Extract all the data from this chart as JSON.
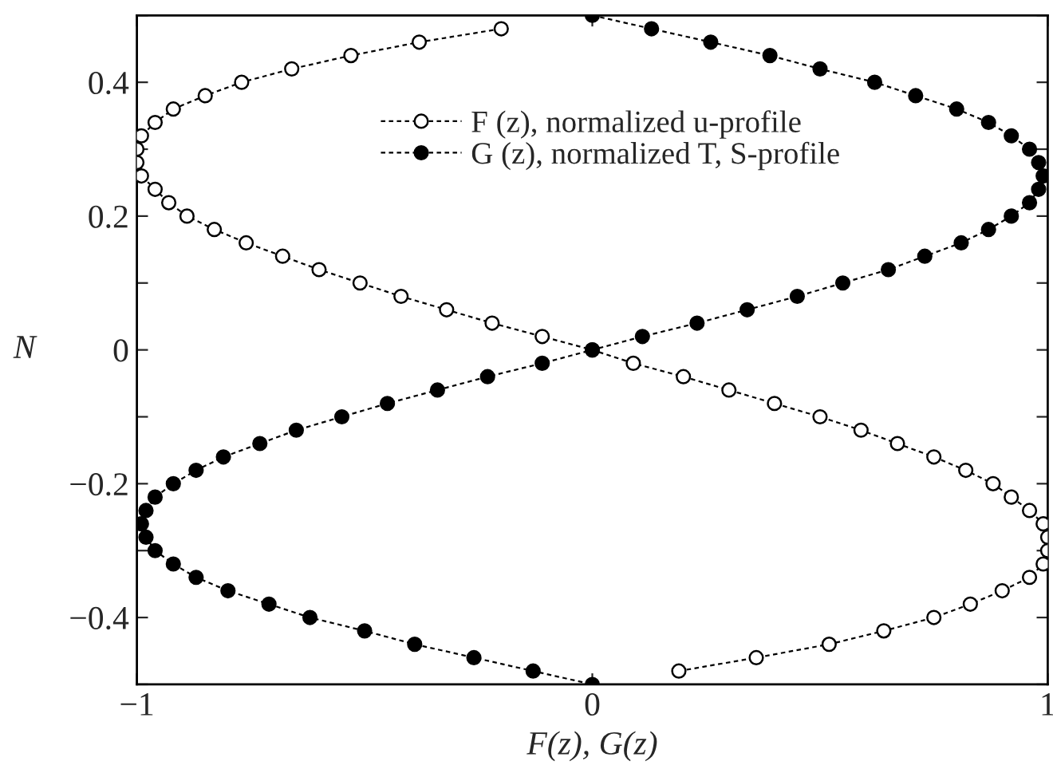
{
  "chart_data": {
    "type": "line",
    "xlabel": "F(z), G(z)",
    "ylabel": "N",
    "xlim": [
      -1,
      1
    ],
    "xticks": [
      -1,
      0,
      1
    ],
    "ylim": [
      -0.5,
      0.5
    ],
    "yticks": [
      {
        "value": -0.5,
        "label": null
      },
      -0.4,
      {
        "value": -0.3,
        "label": null
      },
      -0.2,
      {
        "value": -0.1,
        "label": null
      },
      0,
      {
        "value": 0.1,
        "label": null
      },
      0.2,
      {
        "value": 0.3,
        "label": null
      },
      0.4,
      {
        "value": 0.5,
        "label": null
      }
    ],
    "grid": false,
    "legend": "top",
    "marker": "circle",
    "line_style": "dashed",
    "series": [
      {
        "name": "F (z), normalized u-profile",
        "color": "#ffffff",
        "x": [
          -0.2,
          -0.38,
          -0.53,
          -0.66,
          -0.77,
          -0.85,
          -0.92,
          -0.96,
          -0.99,
          -1.0,
          -1.0,
          -0.99,
          -0.96,
          -0.93,
          -0.89,
          -0.83,
          -0.76,
          -0.68,
          -0.6,
          -0.51,
          -0.42,
          -0.32,
          -0.22,
          -0.11,
          0,
          0.09,
          0.2,
          0.3,
          0.4,
          0.5,
          0.59,
          0.67,
          0.75,
          0.82,
          0.88,
          0.92,
          0.96,
          0.99,
          1.0,
          1.0,
          0.99,
          0.96,
          0.9,
          0.83,
          0.75,
          0.64,
          0.52,
          0.36,
          0.19
        ],
        "values": [
          0.48,
          0.46,
          0.44,
          0.42,
          0.4,
          0.38,
          0.36,
          0.34,
          0.32,
          0.3,
          0.28,
          0.26,
          0.24,
          0.22,
          0.2,
          0.18,
          0.16,
          0.14,
          0.12,
          0.1,
          0.08,
          0.06,
          0.04,
          0.02,
          0,
          -0.02,
          -0.04,
          -0.06,
          -0.08,
          -0.1,
          -0.12,
          -0.14,
          -0.16,
          -0.18,
          -0.2,
          -0.22,
          -0.24,
          -0.26,
          -0.28,
          -0.3,
          -0.32,
          -0.34,
          -0.36,
          -0.38,
          -0.4,
          -0.42,
          -0.44,
          -0.46,
          -0.48
        ]
      },
      {
        "name": "G (z), normalized T, S-profile",
        "color": "#000000",
        "x": [
          0,
          0.13,
          0.26,
          0.39,
          0.5,
          0.62,
          0.71,
          0.8,
          0.87,
          0.92,
          0.96,
          0.98,
          0.99,
          0.98,
          0.96,
          0.92,
          0.87,
          0.81,
          0.73,
          0.65,
          0.55,
          0.45,
          0.34,
          0.23,
          0.11,
          0,
          -0.11,
          -0.23,
          -0.34,
          -0.45,
          -0.55,
          -0.65,
          -0.73,
          -0.81,
          -0.87,
          -0.92,
          -0.96,
          -0.98,
          -0.99,
          -0.98,
          -0.96,
          -0.92,
          -0.87,
          -0.8,
          -0.71,
          -0.62,
          -0.5,
          -0.39,
          -0.26,
          -0.13,
          0
        ],
        "values": [
          0.5,
          0.48,
          0.46,
          0.44,
          0.42,
          0.4,
          0.38,
          0.36,
          0.34,
          0.32,
          0.3,
          0.28,
          0.26,
          0.24,
          0.22,
          0.2,
          0.18,
          0.16,
          0.14,
          0.12,
          0.1,
          0.08,
          0.06,
          0.04,
          0.02,
          0,
          -0.02,
          -0.04,
          -0.06,
          -0.08,
          -0.1,
          -0.12,
          -0.14,
          -0.16,
          -0.18,
          -0.2,
          -0.22,
          -0.24,
          -0.26,
          -0.28,
          -0.3,
          -0.32,
          -0.34,
          -0.36,
          -0.38,
          -0.4,
          -0.42,
          -0.44,
          -0.46,
          -0.48,
          -0.5
        ]
      }
    ]
  }
}
